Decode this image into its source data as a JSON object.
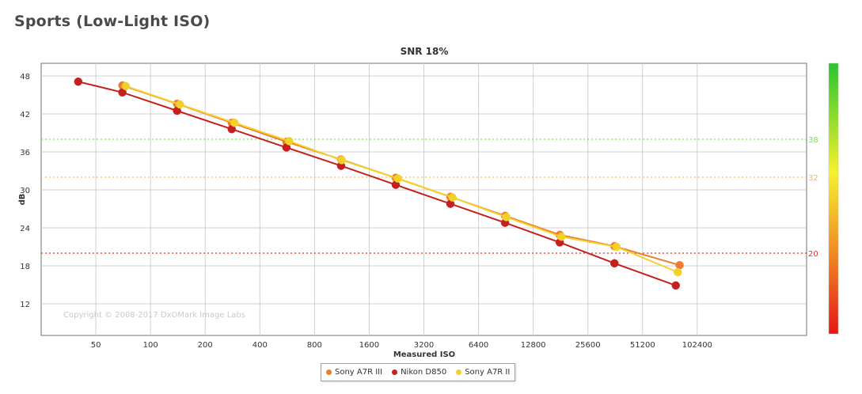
{
  "page_title": "Sports (Low-Light ISO)",
  "chart_data": {
    "type": "line",
    "title": "SNR 18%",
    "xlabel": "Measured ISO",
    "ylabel": "dB",
    "x_scale": "log2",
    "x_ticks": [
      50,
      100,
      200,
      400,
      800,
      1600,
      3200,
      6400,
      12800,
      25600,
      51200,
      102400
    ],
    "xlim": [
      25,
      409600
    ],
    "y_ticks": [
      12,
      18,
      24,
      30,
      36,
      42,
      48
    ],
    "ylim": [
      7,
      50
    ],
    "grid": true,
    "legend_position": "bottom-center",
    "watermark": "Copyright © 2008-2017 DxOMark Image Labs",
    "reference_lines": [
      {
        "value": 38,
        "label": "38",
        "color": "#7be04e"
      },
      {
        "value": 32,
        "label": "32",
        "color": "#f6c04a"
      },
      {
        "value": 20,
        "label": "20",
        "color": "#e0302a"
      }
    ],
    "series": [
      {
        "name": "Sony A7R III",
        "color": "#ef7b30",
        "x": [
          70,
          140,
          280,
          560,
          1120,
          2240,
          4480,
          8960,
          17920,
          35840,
          81920
        ],
        "y": [
          46.5,
          43.6,
          40.6,
          37.6,
          34.8,
          31.9,
          28.9,
          25.9,
          22.9,
          21.1,
          18.1
        ]
      },
      {
        "name": "Nikon D850",
        "color": "#c42020",
        "x": [
          40,
          70,
          140,
          280,
          560,
          1120,
          2240,
          4480,
          8960,
          17920,
          35840,
          78000
        ],
        "y": [
          47.1,
          45.4,
          42.5,
          39.6,
          36.7,
          33.8,
          30.8,
          27.8,
          24.8,
          21.7,
          18.4,
          14.9
        ]
      },
      {
        "name": "Sony A7R II",
        "color": "#f3d02a",
        "x": [
          73,
          145,
          290,
          580,
          1130,
          2300,
          4600,
          9100,
          18300,
          36800,
          80000
        ],
        "y": [
          46.4,
          43.5,
          40.6,
          37.7,
          34.7,
          31.8,
          28.8,
          25.7,
          22.6,
          21.0,
          17.0
        ]
      }
    ],
    "color_scale": {
      "colors": [
        "#27c42e",
        "#f5f22e",
        "#f08a24",
        "#e51616"
      ]
    }
  }
}
